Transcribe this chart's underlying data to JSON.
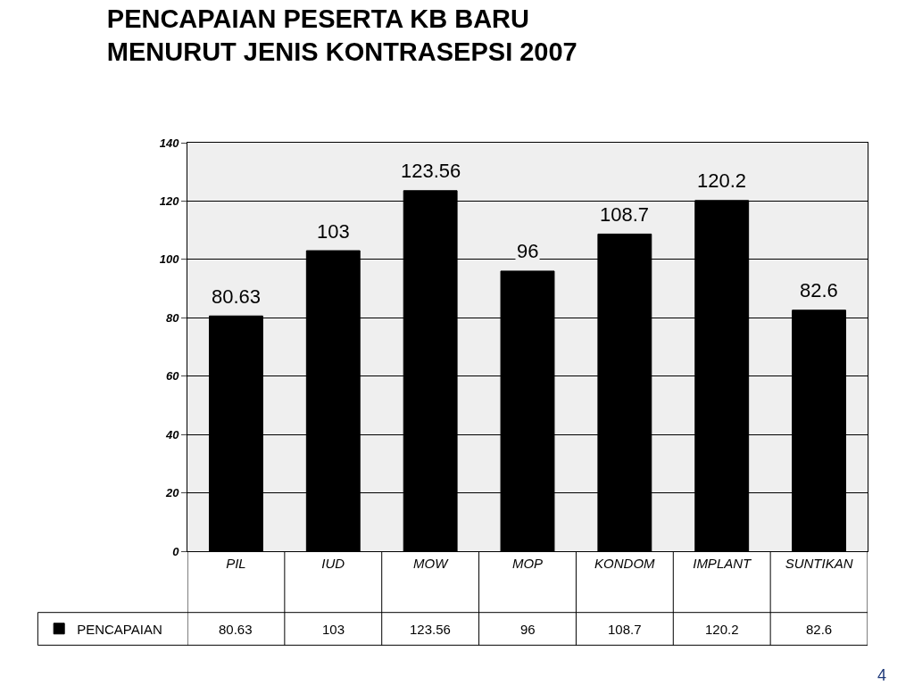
{
  "chart_data": {
    "type": "bar",
    "title": "PENCAPAIAN PESERTA KB BARU\nMENURUT JENIS KONTRASEPSI 2007",
    "categories": [
      "PIL",
      "IUD",
      "MOW",
      "MOP",
      "KONDOM",
      "IMPLANT",
      "SUNTIKAN"
    ],
    "series": [
      {
        "name": "PENCAPAIAN",
        "color": "#000000",
        "values": [
          80.63,
          103,
          123.56,
          96,
          108.7,
          120.2,
          82.6
        ]
      }
    ],
    "ylim": [
      0,
      140
    ],
    "yticks": [
      0,
      20,
      40,
      60,
      80,
      100,
      120,
      140
    ],
    "grid": "y",
    "legend": "bottom left",
    "data_labels": true,
    "annotations": [
      "4",
      "80.63",
      "103",
      "123.56",
      "96",
      "108.7",
      "120.2",
      "82.6"
    ]
  }
}
